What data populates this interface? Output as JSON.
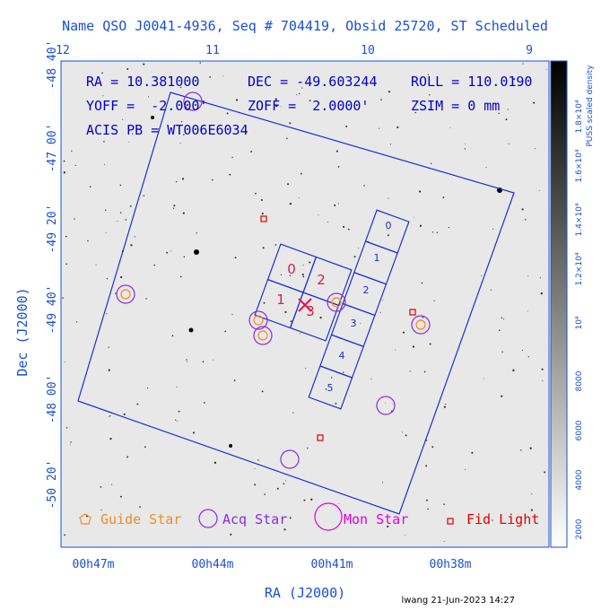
{
  "header": {
    "title": "Name QSO J0041-4936, Seq # 704419, Obsid 25720, ST Scheduled"
  },
  "top_ticks": [
    "12",
    "11",
    "10",
    "9"
  ],
  "left_ticks": [
    "-48 40'",
    "-47 00'",
    "-49 20'",
    "-49 40'",
    "-48 00'",
    "-50 20'"
  ],
  "bottom_ticks": [
    "00h47m",
    "00h44m",
    "00h41m",
    "00h38m"
  ],
  "x_label": "RA (J2000)",
  "y_label": "Dec (J2000)",
  "overlay": [
    "RA = 10.381000",
    "DEC = -49.603244",
    "ROLL = 110.0190",
    "YOFF =  -2.000'",
    "ZOFF =  2.0000'",
    "ZSIM = 0 mm",
    "ACIS PB = WT006E6034"
  ],
  "i_chips": [
    "0",
    "2",
    "1",
    "3"
  ],
  "s_chips": [
    "0",
    "1",
    "2",
    "3",
    "4",
    "5"
  ],
  "legend": [
    "Guide Star",
    "Acq Star",
    "Mon Star",
    "Fid Light"
  ],
  "colorbar": {
    "title": "PUSS scaled density",
    "labels": [
      "2000",
      "4000",
      "6000",
      "8000",
      "10⁴",
      "1.2×10⁴",
      "1.4×10⁴",
      "1.6×10⁴",
      "1.8×10⁴"
    ]
  },
  "footer": "lwang 21-Jun-2023 14:27"
}
